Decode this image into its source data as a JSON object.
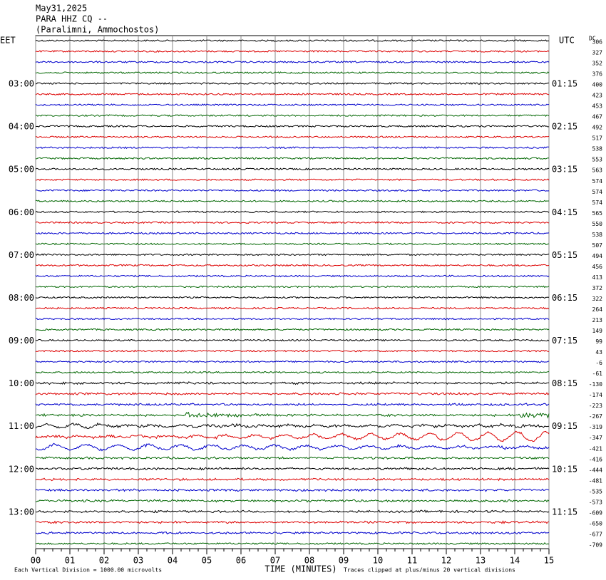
{
  "header": {
    "date": "May31,2025",
    "station": "PARA HHZ CQ --",
    "location": "(Paralimni, Ammochostos)"
  },
  "left_axis": {
    "title": "EET",
    "labels": [
      "03:00",
      "04:00",
      "05:00",
      "06:00",
      "07:00",
      "08:00",
      "09:00",
      "10:00",
      "11:00",
      "12:00",
      "13:00"
    ]
  },
  "right_axis": {
    "title": "UTC",
    "labels": [
      "01:15",
      "02:15",
      "03:15",
      "04:15",
      "05:15",
      "06:15",
      "07:15",
      "08:15",
      "09:15",
      "10:15",
      "11:15"
    ]
  },
  "dc": {
    "title": "DC",
    "values": [
      306,
      327,
      352,
      376,
      400,
      423,
      453,
      467,
      492,
      517,
      538,
      553,
      563,
      574,
      574,
      574,
      565,
      550,
      538,
      507,
      494,
      456,
      413,
      372,
      322,
      264,
      213,
      149,
      99,
      43,
      -6,
      -61,
      -130,
      -174,
      -223,
      -267,
      -319,
      -347,
      -421,
      -416,
      -444,
      -481,
      -535,
      -573,
      -609,
      -650,
      -677,
      -709
    ]
  },
  "x_axis": {
    "title": "TIME (MINUTES)",
    "ticks": [
      "00",
      "01",
      "02",
      "03",
      "04",
      "05",
      "06",
      "07",
      "08",
      "09",
      "10",
      "11",
      "12",
      "13",
      "14",
      "15"
    ]
  },
  "footer": {
    "scale": "Each Vertical Division = 1000.00 microvolts",
    "clip": "Traces clipped at plus/minus 20 vertical divisions"
  }
}
